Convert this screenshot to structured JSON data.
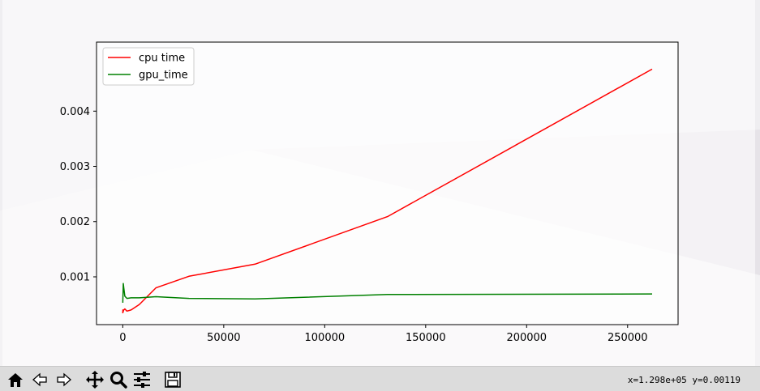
{
  "toolbar": {
    "buttons": [
      {
        "icon": "home-icon"
      },
      {
        "icon": "back-arrow-icon"
      },
      {
        "icon": "forward-arrow-icon"
      },
      {
        "icon": "pan-move-icon"
      },
      {
        "icon": "zoom-magnifier-icon"
      },
      {
        "icon": "configure-subplots-icon"
      },
      {
        "icon": "save-floppy-icon"
      }
    ],
    "coordinates": "x=1.298e+05 y=0.00119"
  },
  "chart_data": {
    "type": "line",
    "title": "",
    "xlabel": "",
    "ylabel": "",
    "xlim": [
      -13000,
      275000
    ],
    "ylim": [
      0.000135,
      0.00525
    ],
    "xticks": [
      0,
      50000,
      100000,
      150000,
      200000,
      250000
    ],
    "xtick_labels": [
      "0",
      "50000",
      "100000",
      "150000",
      "200000",
      "250000"
    ],
    "yticks": [
      0.001,
      0.002,
      0.003,
      0.004
    ],
    "ytick_labels": [
      "0.001",
      "0.002",
      "0.003",
      "0.004"
    ],
    "grid": false,
    "legend": "upper left",
    "series": [
      {
        "name": "cpu time",
        "color": "#ff0000",
        "x": [
          0,
          64,
          128,
          256,
          512,
          1024,
          2048,
          4096,
          8192,
          16384,
          32768,
          65536,
          131072,
          262144
        ],
        "y": [
          0.00034,
          0.0004,
          0.00036,
          0.00038,
          0.0004,
          0.00042,
          0.00038,
          0.0004,
          0.0005,
          0.0008,
          0.00101,
          0.00123,
          0.00209,
          0.00476
        ]
      },
      {
        "name": "gpu_time",
        "color": "#008000",
        "x": [
          0,
          64,
          128,
          256,
          512,
          1024,
          2048,
          4096,
          8192,
          16384,
          32768,
          65536,
          131072,
          262144
        ],
        "y": [
          0.00053,
          0.0006,
          0.0007,
          0.00088,
          0.0008,
          0.00065,
          0.00061,
          0.00062,
          0.00062,
          0.00064,
          0.00061,
          0.0006,
          0.00068,
          0.00069
        ]
      }
    ]
  }
}
